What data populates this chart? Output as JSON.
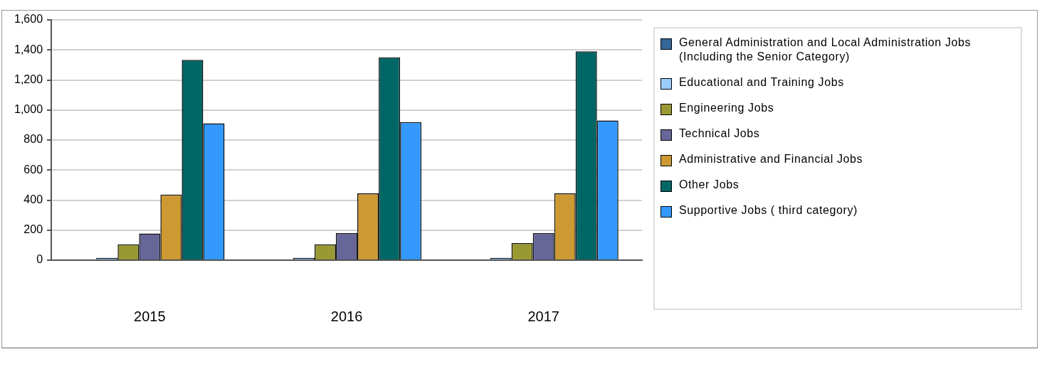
{
  "chart_data": {
    "type": "bar",
    "categories": [
      "2015",
      "2016",
      "2017"
    ],
    "series": [
      {
        "name": "General Administration and Local Administration Jobs (Including the Senior Category)",
        "color": "#336699",
        "values": [
          0,
          0,
          0
        ]
      },
      {
        "name": "Educational and Training Jobs",
        "color": "#99ccff",
        "values": [
          15,
          15,
          15
        ]
      },
      {
        "name": "Engineering Jobs",
        "color": "#999933",
        "values": [
          105,
          105,
          114
        ]
      },
      {
        "name": "Technical Jobs",
        "color": "#666699",
        "values": [
          178,
          180,
          180
        ]
      },
      {
        "name": "Administrative and Financial Jobs",
        "color": "#cc9933",
        "values": [
          437,
          445,
          445
        ]
      },
      {
        "name": "Other Jobs",
        "color": "#006666",
        "values": [
          1334,
          1350,
          1390
        ]
      },
      {
        "name": "Supportive Jobs ( third category)",
        "color": "#3399ff",
        "values": [
          911,
          920,
          930
        ]
      }
    ],
    "ylim": [
      0,
      1600
    ],
    "yticks": [
      {
        "value": 0,
        "label": "0"
      },
      {
        "value": 200,
        "label": "200"
      },
      {
        "value": 400,
        "label": "400"
      },
      {
        "value": 600,
        "label": "600"
      },
      {
        "value": 800,
        "label": "800"
      },
      {
        "value": 1000,
        "label": "1,000"
      },
      {
        "value": 1200,
        "label": "1,200"
      },
      {
        "value": 1400,
        "label": "1,400"
      },
      {
        "value": 1600,
        "label": "1,600"
      }
    ],
    "grid": "y",
    "legend": "right"
  }
}
